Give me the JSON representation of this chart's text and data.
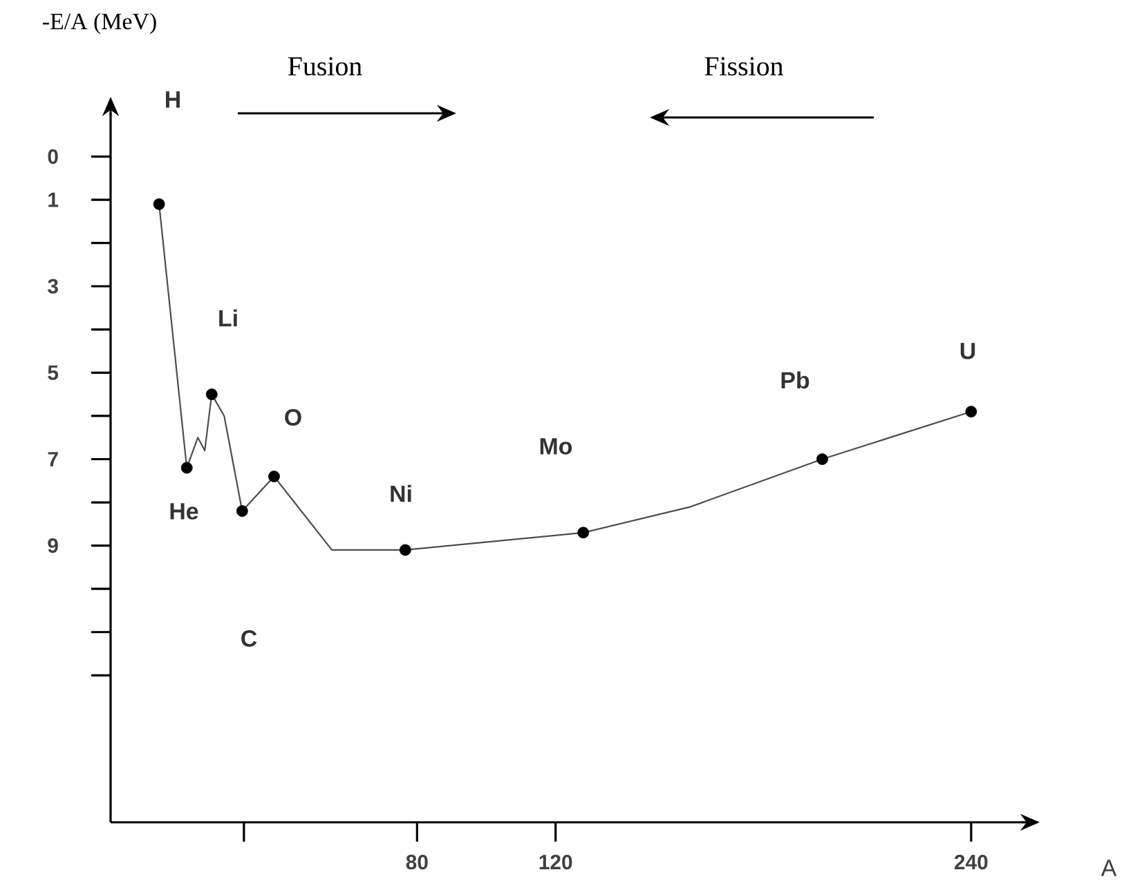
{
  "chart_data": {
    "type": "line",
    "ylabel": "-E/A (MeV)",
    "xlabel": "A",
    "xlim": [
      -8.5,
      255
    ],
    "ylim": [
      15.4,
      -1.0
    ],
    "xticks": [
      {
        "value": 30,
        "label": null
      },
      80,
      120,
      240
    ],
    "yticks": [
      0,
      1,
      {
        "value": 2,
        "label": null
      },
      3,
      {
        "value": 4,
        "label": null
      },
      5,
      {
        "value": 6,
        "label": null
      },
      7,
      {
        "value": 8,
        "label": null
      },
      9,
      {
        "value": 10,
        "label": null
      },
      {
        "value": 11,
        "label": null
      },
      {
        "value": 12,
        "label": null
      }
    ],
    "series": [
      {
        "color": "#4d4d4d",
        "marker": "none",
        "x": [
          5.5,
          13.5,
          16.7,
          18.7,
          20.7,
          24.3,
          29.5,
          38.7,
          55.4,
          76.6,
          128,
          159,
          197,
          240
        ],
        "values": [
          1.1,
          7.2,
          6.5,
          6.8,
          5.5,
          6.0,
          8.2,
          7.4,
          9.1,
          9.1,
          8.7,
          8.1,
          7.0,
          5.9
        ]
      },
      {
        "type": "scatter",
        "color": "#000000",
        "marker": "circle",
        "x": [
          5.5,
          13.5,
          20.7,
          29.5,
          38.7,
          76.6,
          128,
          197,
          240
        ],
        "values": [
          1.1,
          7.2,
          5.5,
          8.2,
          7.4,
          9.1,
          8.7,
          7.0,
          5.9
        ]
      }
    ],
    "annotations": [
      "Fusion",
      "Fission",
      "H",
      "Li",
      "He",
      "O",
      "C",
      "Ni",
      "Mo",
      "Pb",
      "U"
    ]
  }
}
